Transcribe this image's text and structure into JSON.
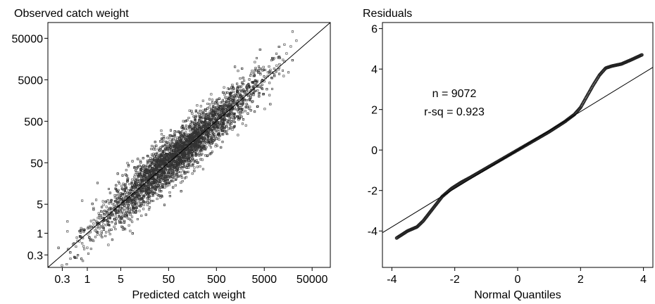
{
  "chart_data": [
    {
      "type": "scatter",
      "title": "",
      "ylabel": "Observed catch weight",
      "xlabel": "Predicted catch weight",
      "scale": "log",
      "xlim": [
        0.15,
        120000
      ],
      "ylim": [
        0.15,
        120000
      ],
      "x_ticks": [
        0.3,
        1,
        5,
        50,
        500,
        5000,
        50000
      ],
      "x_tick_labels": [
        "0.3",
        "1",
        "5",
        "50",
        "500",
        "5000",
        "50000"
      ],
      "y_ticks": [
        0.3,
        1,
        5,
        50,
        500,
        5000,
        50000
      ],
      "y_tick_labels": [
        "0.3",
        "1",
        "5",
        "50",
        "500",
        "5000",
        "50000"
      ],
      "reference_line": "y = x",
      "n_points": 9072,
      "point_cloud": {
        "x_range": [
          0.25,
          25000
        ],
        "center_line": "y = x",
        "spread_log10_sd": 0.28
      },
      "grid": false,
      "legend": "none"
    },
    {
      "type": "scatter",
      "title": "",
      "ylabel": "Residuals",
      "xlabel": "Normal Quantiles",
      "xlim": [
        -4.3,
        4.3
      ],
      "ylim": [
        -5.8,
        6.3
      ],
      "x_ticks": [
        -4,
        -2,
        0,
        2,
        4
      ],
      "x_tick_labels": [
        "-4",
        "-2",
        "0",
        "2",
        "4"
      ],
      "y_ticks": [
        -4,
        -2,
        0,
        2,
        4,
        6
      ],
      "y_tick_labels": [
        "-4",
        "-2",
        "0",
        "2",
        "4",
        "6"
      ],
      "reference_line": {
        "slope": 0.95,
        "intercept": 0
      },
      "qq_curve": {
        "x": [
          -3.85,
          -3.5,
          -3.2,
          -3.0,
          -2.7,
          -2.4,
          -2.1,
          -1.8,
          -1.5,
          -1.0,
          -0.5,
          0,
          0.5,
          1.0,
          1.5,
          1.8,
          2.0,
          2.2,
          2.4,
          2.6,
          2.8,
          3.0,
          3.3,
          3.6,
          3.95
        ],
        "y": [
          -4.35,
          -4.0,
          -3.8,
          -3.5,
          -2.9,
          -2.3,
          -1.9,
          -1.6,
          -1.35,
          -0.9,
          -0.45,
          0,
          0.45,
          0.9,
          1.4,
          1.75,
          2.1,
          2.65,
          3.2,
          3.7,
          4.05,
          4.15,
          4.25,
          4.45,
          4.7
        ]
      },
      "annotations": [
        "n = 9072",
        "r-sq = 0.923"
      ],
      "grid": false,
      "legend": "none"
    }
  ]
}
